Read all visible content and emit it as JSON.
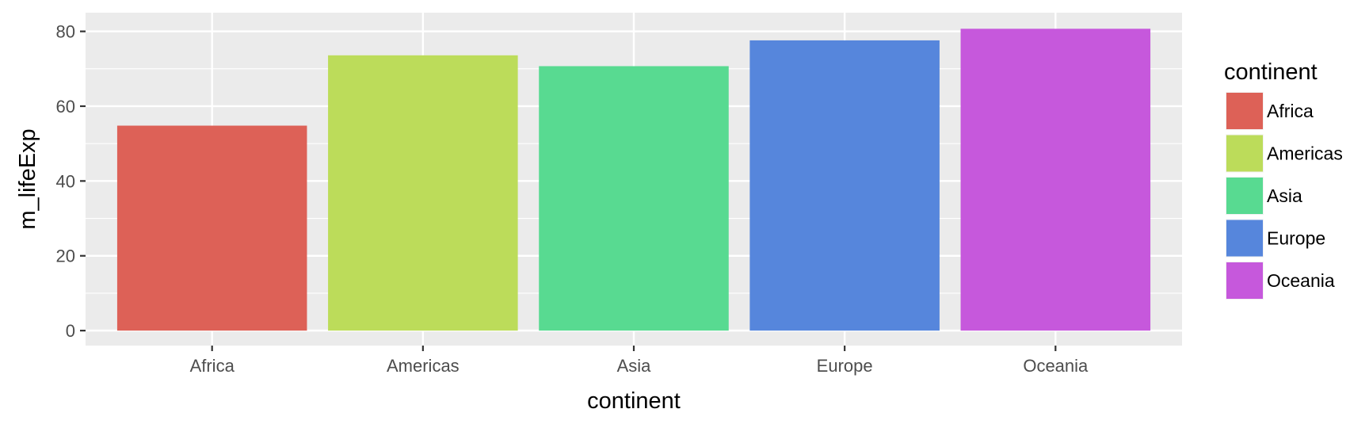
{
  "chart_data": {
    "type": "bar",
    "categories": [
      "Africa",
      "Americas",
      "Asia",
      "Europe",
      "Oceania"
    ],
    "values": [
      54.8,
      73.6,
      70.7,
      77.6,
      80.7
    ],
    "xlabel": "continent",
    "ylabel": "m_lifeExp",
    "ylim": [
      -4,
      85
    ],
    "yticks": [
      0,
      20,
      40,
      60,
      80
    ],
    "grid": true,
    "legend": {
      "title": "continent",
      "placement": "right",
      "entries": [
        "Africa",
        "Americas",
        "Asia",
        "Europe",
        "Oceania"
      ]
    },
    "colors": [
      "#dd6157",
      "#bcdc5a",
      "#58da91",
      "#5686dc",
      "#c658dc"
    ],
    "panel_background": "#ebebeb",
    "grid_color": "#ffffff"
  }
}
